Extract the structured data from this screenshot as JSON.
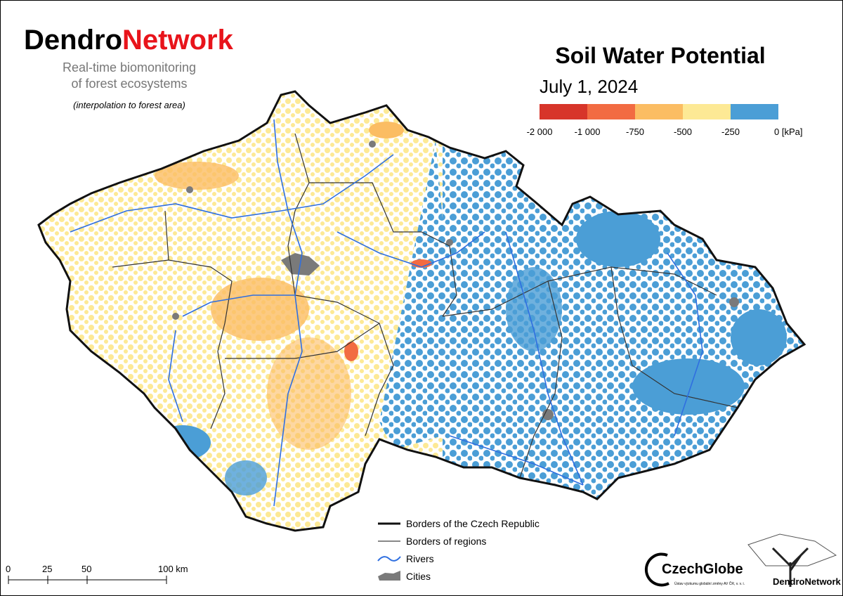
{
  "header": {
    "brand": {
      "part1": "Dendro",
      "part2": "Network"
    },
    "subtitle_lines": [
      "Real-time biomonitoring",
      "of forest ecosystems"
    ],
    "note": "(interpolation to forest area)"
  },
  "map_title": {
    "title": "Soil Water Potential",
    "date": "July 1, 2024"
  },
  "color_scale": {
    "colors": [
      "#d7352a",
      "#f26b42",
      "#fbbd63",
      "#fde995",
      "#4b9ed6"
    ],
    "labels": [
      "-2 000",
      "-1 000",
      "-750",
      "-500",
      "-250",
      "0 [kPa]"
    ]
  },
  "legend": {
    "items": [
      "Borders of the Czech Republic",
      "Borders of regions",
      "Rivers",
      "Cities"
    ]
  },
  "scale_bar": {
    "labels": [
      "0",
      "25",
      "50",
      "100 km"
    ]
  },
  "logos": {
    "czechglobe": "CzechGlobe",
    "czechglobe_sub": "Ústav výzkumu globální změny AV ČR, v. v. i.",
    "dendronetwork": "DendroNetwork"
  }
}
